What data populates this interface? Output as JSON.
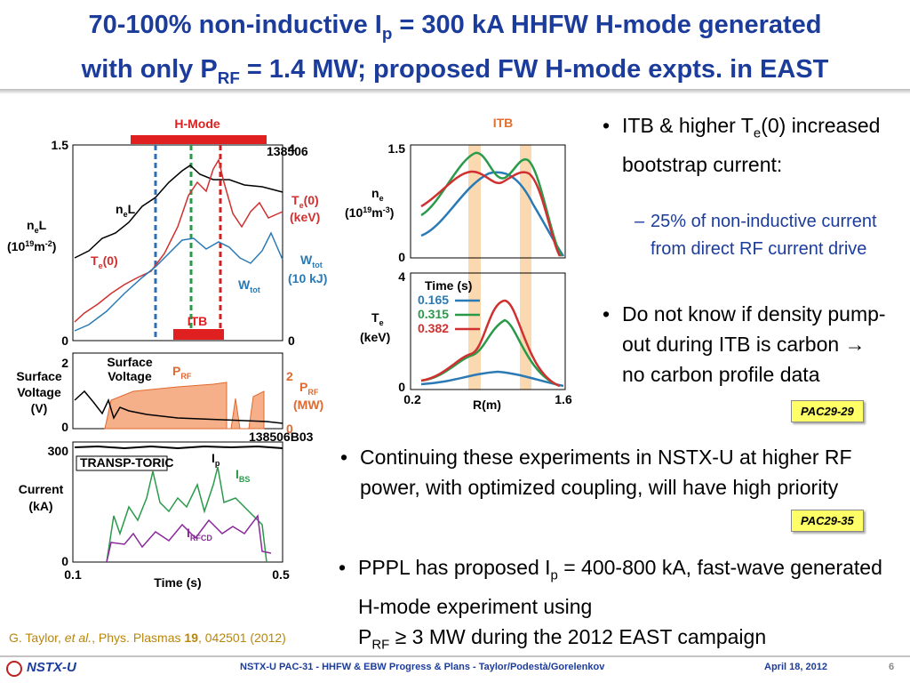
{
  "header": {
    "title": [
      "70-100% non-inductive I",
      "p",
      " = 300 kA HHFW H-mode generated",
      "with only P",
      "RF",
      " = 1.4 MW; proposed FW H-mode expts. in EAST"
    ]
  },
  "figure_left": {
    "top": {
      "bar_label": "H-Mode",
      "itb_label": "ITB",
      "shot": "138506",
      "yticks_left": [
        "1.5",
        "0"
      ],
      "yticks_right": [
        "4",
        "0"
      ],
      "ylabel": [
        "n",
        "e",
        "L",
        "(10",
        "19",
        "m",
        "-2",
        ")"
      ],
      "ne_label": [
        "n",
        "e",
        "L"
      ],
      "te_label": [
        "T",
        "e",
        "(0)"
      ],
      "te_axis": [
        "T",
        "e",
        "(0)",
        "(keV)"
      ],
      "wtot_label": [
        "W",
        "tot"
      ],
      "wtot_axis": [
        "W",
        "tot",
        "(10 kJ)"
      ]
    },
    "middle": {
      "yticks_left": [
        "2",
        "0"
      ],
      "yticks_right": [
        "2",
        "0"
      ],
      "sv_label": [
        "Surface",
        "Voltage"
      ],
      "ylabel": [
        "Surface",
        "Voltage",
        "(V)"
      ],
      "prf_label": [
        "P",
        "RF"
      ],
      "prf_axis": [
        "P",
        "RF",
        "(MW)"
      ]
    },
    "bottom": {
      "yticks": [
        "300",
        "0"
      ],
      "shot": "138506B03",
      "code": "TRANSP-TORIC",
      "ip_label": [
        "I",
        "p"
      ],
      "ibs_label": [
        "I",
        "BS"
      ],
      "irfcd_label": [
        "I",
        "RFCD"
      ],
      "ylabel": [
        "Current",
        "(kA)"
      ],
      "xticks": [
        "0.1",
        "0.5"
      ],
      "xlabel": "Time (s)"
    }
  },
  "figure_right": {
    "itb_label": "ITB",
    "ne_yticks": [
      "1.5",
      "0"
    ],
    "ne_ylabel": [
      "n",
      "e",
      "(10",
      "19",
      "m",
      "-3",
      ")"
    ],
    "te_yticks": [
      "4",
      "0"
    ],
    "te_ylabel": [
      "T",
      "e",
      "(keV)"
    ],
    "legend_title": "Time (s)",
    "legend": [
      "0.165",
      "0.315",
      "0.382"
    ],
    "xticks": [
      "0.2",
      "1.6"
    ],
    "xlabel": "R(m)"
  },
  "bullets": [
    {
      "text": [
        "ITB & higher T",
        "e",
        "(0) increased bootstrap current:"
      ],
      "sub": "25% of non-inductive current from direct RF current drive"
    },
    {
      "text": "Do not know if density pump-out during ITB is carbon → no carbon profile data",
      "tag": "PAC29-29"
    },
    {
      "text": "Continuing these experiments in NSTX-U at higher RF power, with optimized coupling, will have high priority",
      "tag": "PAC29-35"
    },
    {
      "text": [
        "PPPL has proposed I",
        "p",
        " = 400-800 kA, fast-wave generated H-mode experiment using",
        "P",
        "RF",
        " ≥ 3 MW during the 2012 EAST campaign"
      ]
    }
  ],
  "citation": [
    "G. Taylor, ",
    "et al.",
    ", Phys. Plasmas ",
    "19",
    ", 042501 (2012)"
  ],
  "footer": {
    "logo": "NSTX-U",
    "center": "NSTX-U PAC-31 - HHFW & EBW Progress & Plans  - Taylor/Podestà/Gorelenkov",
    "date": "April 18, 2012",
    "page": "6"
  }
}
